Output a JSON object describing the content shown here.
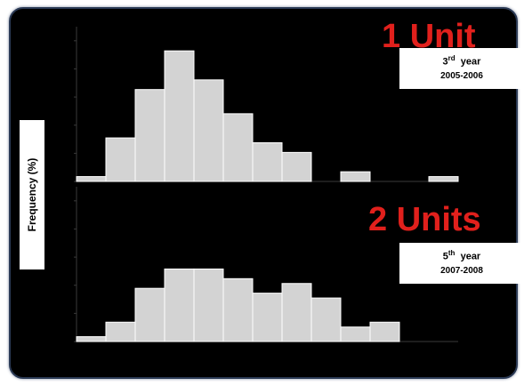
{
  "chart_data": [
    {
      "type": "bar",
      "title": "1 Unit",
      "annotation": {
        "ordinal": "3",
        "ordinal_suffix": "rd",
        "year_word": "year",
        "range": "2005-2006"
      },
      "bins": 13,
      "values": [
        0.5,
        4.5,
        9.5,
        13.5,
        10.5,
        7,
        4,
        3,
        0,
        1,
        0,
        0,
        0.5
      ],
      "ylim": [
        0,
        16
      ],
      "bar_color": "#d3d3d3"
    },
    {
      "type": "bar",
      "title": "2 Units",
      "annotation": {
        "ordinal": "5",
        "ordinal_suffix": "th",
        "year_word": "year",
        "range": "2007-2008"
      },
      "bins": 13,
      "values": [
        0.5,
        2,
        5.5,
        7.5,
        7.5,
        6.5,
        5,
        6,
        4.5,
        1.5,
        2,
        0,
        0
      ],
      "ylim": [
        0,
        16
      ],
      "bar_color": "#d3d3d3"
    }
  ],
  "ylabel": "Frequency  (%)",
  "colors": {
    "background": "#000000",
    "title": "#e1201c",
    "frame_border": "#2b3a55"
  }
}
